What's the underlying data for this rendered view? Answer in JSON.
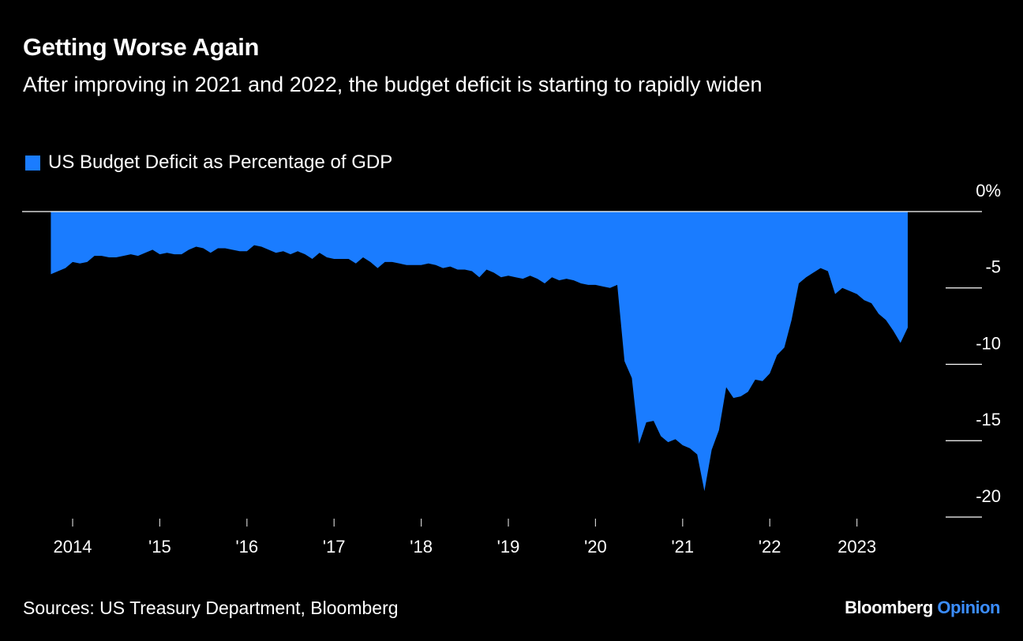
{
  "chart_data": {
    "type": "area",
    "title": "Getting Worse Again",
    "subtitle": "After improving in 2021 and 2022, the budget deficit is starting to rapidly widen",
    "source": "Sources: US Treasury Department, Bloomberg",
    "logo": {
      "text": "Bloomberg",
      "highlight": "Opinion"
    },
    "x": [
      2013.75,
      2013.833,
      2013.917,
      2014,
      2014.083,
      2014.167,
      2014.25,
      2014.333,
      2014.417,
      2014.5,
      2014.583,
      2014.667,
      2014.75,
      2014.833,
      2014.917,
      2015,
      2015.083,
      2015.167,
      2015.25,
      2015.333,
      2015.417,
      2015.5,
      2015.583,
      2015.667,
      2015.75,
      2015.833,
      2015.917,
      2016,
      2016.083,
      2016.167,
      2016.25,
      2016.333,
      2016.417,
      2016.5,
      2016.583,
      2016.667,
      2016.75,
      2016.833,
      2016.917,
      2017,
      2017.083,
      2017.167,
      2017.25,
      2017.333,
      2017.417,
      2017.5,
      2017.583,
      2017.667,
      2017.75,
      2017.833,
      2017.917,
      2018,
      2018.083,
      2018.167,
      2018.25,
      2018.333,
      2018.417,
      2018.5,
      2018.583,
      2018.667,
      2018.75,
      2018.833,
      2018.917,
      2019,
      2019.083,
      2019.167,
      2019.25,
      2019.333,
      2019.417,
      2019.5,
      2019.583,
      2019.667,
      2019.75,
      2019.833,
      2019.917,
      2020,
      2020.083,
      2020.167,
      2020.25,
      2020.333,
      2020.417,
      2020.5,
      2020.583,
      2020.667,
      2020.75,
      2020.833,
      2020.917,
      2021,
      2021.083,
      2021.167,
      2021.25,
      2021.333,
      2021.417,
      2021.5,
      2021.583,
      2021.667,
      2021.75,
      2021.833,
      2021.917,
      2022,
      2022.083,
      2022.167,
      2022.25,
      2022.333,
      2022.417,
      2022.5,
      2022.583,
      2022.667,
      2022.75,
      2022.833,
      2022.917,
      2023,
      2023.083,
      2023.167,
      2023.25,
      2023.333,
      2023.417,
      2023.5,
      2023.583
    ],
    "series": [
      {
        "name": "US Budget Deficit as Percentage of GDP",
        "color": "#1a7cff",
        "values": [
          -4.1,
          -3.9,
          -3.7,
          -3.3,
          -3.4,
          -3.3,
          -2.9,
          -2.9,
          -3.0,
          -3.0,
          -2.9,
          -2.8,
          -2.9,
          -2.7,
          -2.5,
          -2.8,
          -2.7,
          -2.8,
          -2.8,
          -2.5,
          -2.3,
          -2.4,
          -2.7,
          -2.4,
          -2.4,
          -2.5,
          -2.6,
          -2.6,
          -2.2,
          -2.3,
          -2.5,
          -2.7,
          -2.6,
          -2.8,
          -2.6,
          -2.8,
          -3.1,
          -2.7,
          -3.0,
          -3.1,
          -3.1,
          -3.1,
          -3.4,
          -3.0,
          -3.3,
          -3.7,
          -3.3,
          -3.3,
          -3.4,
          -3.5,
          -3.5,
          -3.5,
          -3.4,
          -3.5,
          -3.7,
          -3.6,
          -3.8,
          -3.8,
          -3.9,
          -4.3,
          -3.8,
          -4.0,
          -4.3,
          -4.2,
          -4.3,
          -4.4,
          -4.2,
          -4.4,
          -4.7,
          -4.3,
          -4.5,
          -4.4,
          -4.5,
          -4.7,
          -4.8,
          -4.8,
          -4.9,
          -5.0,
          -4.8,
          -9.8,
          -10.9,
          -15.2,
          -13.8,
          -13.7,
          -14.7,
          -15.1,
          -14.9,
          -15.3,
          -15.5,
          -15.9,
          -18.3,
          -15.6,
          -14.3,
          -11.5,
          -12.2,
          -12.1,
          -11.8,
          -11.0,
          -11.1,
          -10.6,
          -9.4,
          -8.9,
          -7.1,
          -4.7,
          -4.3,
          -4.0,
          -3.7,
          -3.9,
          -5.4,
          -5.0,
          -5.2,
          -5.4,
          -5.8,
          -6.0,
          -6.7,
          -7.1,
          -7.8,
          -8.6,
          -7.6
        ]
      }
    ],
    "xlim": [
      2013.42,
      2024.0
    ],
    "xticks": [
      {
        "value": 2014,
        "label": "2014"
      },
      {
        "value": 2015,
        "label": "'15"
      },
      {
        "value": 2016,
        "label": "'16"
      },
      {
        "value": 2017,
        "label": "'17"
      },
      {
        "value": 2018,
        "label": "'18"
      },
      {
        "value": 2019,
        "label": "'19"
      },
      {
        "value": 2020,
        "label": "'20"
      },
      {
        "value": 2021,
        "label": "'21"
      },
      {
        "value": 2022,
        "label": "'22"
      },
      {
        "value": 2023,
        "label": "2023"
      }
    ],
    "ylim": [
      -20,
      0
    ],
    "yticks": [
      {
        "value": 0,
        "label": "0%"
      },
      -5,
      -10,
      -15,
      -20
    ]
  }
}
